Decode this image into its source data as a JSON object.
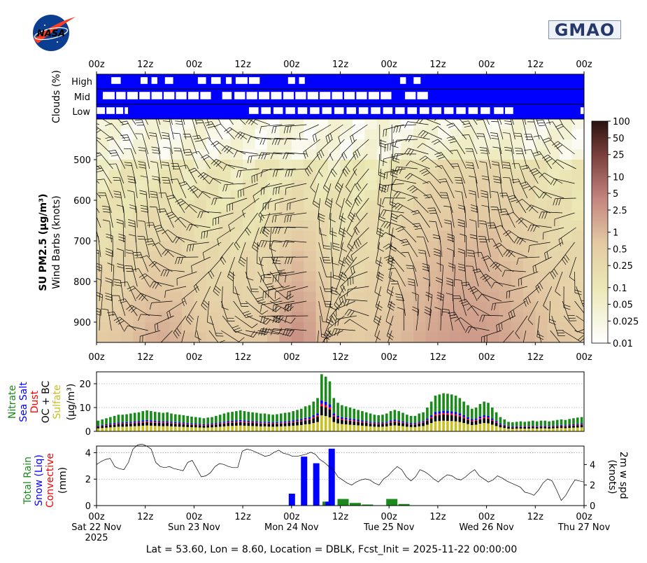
{
  "logos": {
    "left": "NASA",
    "right": "GMAO"
  },
  "time_ticks": [
    "00z",
    "12z",
    "00z",
    "12z",
    "00z",
    "12z",
    "00z",
    "12z",
    "00z",
    "12z",
    "00z"
  ],
  "date_ticks": [
    {
      "at": 0,
      "lines": [
        "Sat 22 Nov",
        "2025"
      ]
    },
    {
      "at": 2,
      "lines": [
        "Sun 23 Nov"
      ]
    },
    {
      "at": 4,
      "lines": [
        "Mon 24 Nov"
      ]
    },
    {
      "at": 6,
      "lines": [
        "Tue 25 Nov"
      ]
    },
    {
      "at": 8,
      "lines": [
        "Wed 26 Nov"
      ]
    },
    {
      "at": 10,
      "lines": [
        "Thu 27 Nov"
      ]
    }
  ],
  "footer": "Lat = 53.60, Lon = 8.60, Location = DBLK, Fcst_Init = 2025-11-22 00:00:00",
  "colors": {
    "cloud": "#0000ff",
    "nitrate": "#1a8a1a",
    "seasalt": "#0000ff",
    "dust": "#ff0000",
    "ocbc": "#000000",
    "sulfate": "#c8c020",
    "rain": "#1a8a1a",
    "snow": "#0000ff"
  },
  "chart_data": [
    {
      "type": "heatmap",
      "name": "clouds",
      "ylabel": "Clouds (%)",
      "rows": [
        "High",
        "Mid",
        "Low"
      ],
      "x": "hours 0-120, 3-hourly",
      "levels": {
        "High": [
          0,
          0,
          0,
          0,
          1,
          0,
          1,
          0,
          1,
          1,
          0,
          0,
          1,
          1,
          0,
          0,
          1,
          0,
          0,
          0,
          0,
          0,
          0,
          0,
          0,
          0,
          0,
          0,
          0,
          0,
          0,
          0,
          0,
          0,
          0,
          0,
          0,
          0,
          0,
          0
        ],
        "Mid": [
          0,
          1,
          0,
          0,
          1,
          0,
          1,
          0,
          1,
          1,
          0,
          1,
          0,
          1,
          1,
          0,
          1,
          1,
          0,
          0,
          0,
          0,
          0,
          0,
          0,
          0,
          0,
          0,
          1,
          0,
          0,
          0,
          0,
          0,
          0,
          0,
          0,
          0,
          0,
          0
        ],
        "Low": [
          1,
          1,
          0,
          1,
          0,
          0,
          0,
          0,
          0,
          0,
          0,
          0,
          0,
          0,
          0,
          0,
          0,
          0,
          0,
          0,
          0,
          0,
          0,
          0,
          0,
          0,
          0,
          0,
          0,
          0,
          0,
          0,
          0,
          0,
          0,
          0,
          0,
          0,
          0,
          0
        ]
      }
    },
    {
      "type": "heatmap",
      "name": "pm25_profile",
      "ylabel": "SU PM2.5 (μg/m³)",
      "ylabel2": "Wind Barbs (knots)",
      "y_ticks": [
        500,
        600,
        700,
        800,
        900
      ],
      "y_range_hpa": [
        950,
        400
      ],
      "colorbar_ticks": [
        "100",
        "50",
        "25",
        "10",
        "5",
        "2.5",
        "1",
        "0.5",
        "0.25",
        "0.1",
        "0.05",
        "0.025",
        "0.01"
      ]
    },
    {
      "type": "bar",
      "name": "aerosol_stack",
      "ylabel_species": [
        "Nitrate",
        "Sea Salt",
        "Dust",
        "OC + BC",
        "Sulfate"
      ],
      "ylabel_unit": "(μg/m³)",
      "y_ticks": [
        0,
        10,
        20
      ],
      "ylim": [
        0,
        25
      ],
      "totals": [
        4.5,
        5,
        5.5,
        6,
        6.5,
        7,
        7,
        7.2,
        7.5,
        7.8,
        8,
        8.5,
        8.8,
        8.5,
        8.2,
        8,
        7.8,
        8,
        7.5,
        7.2,
        7,
        6.8,
        6.5,
        6.2,
        6,
        5.8,
        5.5,
        5.8,
        6,
        6.5,
        7,
        7.5,
        8,
        8.2,
        8.5,
        8.8,
        8.5,
        8.2,
        8,
        7.8,
        7.5,
        7.5,
        7.2,
        7,
        7.2,
        7.5,
        7.8,
        8,
        8.5,
        9,
        9.5,
        10.5,
        11,
        12.5,
        14,
        24,
        23,
        21,
        14,
        12,
        11,
        10.5,
        10,
        9.5,
        9,
        8.5,
        8,
        7.5,
        7,
        6.8,
        7,
        7.5,
        8.5,
        9,
        8.5,
        7.8,
        7,
        6.5,
        6.5,
        7.5,
        8,
        10,
        12.5,
        15,
        15.5,
        16,
        15.8,
        15.5,
        15,
        14,
        12.5,
        11,
        9.5,
        10,
        11.5,
        12.5,
        12,
        10,
        8,
        6,
        5,
        4,
        3.8,
        4,
        4.2,
        4,
        4.2,
        4.5,
        4.2,
        4.5,
        4.5,
        4.2,
        4.5,
        4.8,
        5,
        4.8,
        5.2,
        5.5,
        5.8,
        6
      ],
      "sulfate_frac": 0.28,
      "ocbc_frac": 0.16,
      "dust_frac": 0.04,
      "seasalt_frac": 0.06
    },
    {
      "type": "bar",
      "name": "precip",
      "ylabel_species": [
        "Total Rain",
        "Snow (Liq)",
        "Convective"
      ],
      "ylabel_unit": "(mm)",
      "y_ticks": [
        0,
        2,
        4
      ],
      "ylim": [
        0,
        4.5
      ],
      "bars": [
        {
          "hour": 48,
          "snow": 0.9,
          "rain": 0
        },
        {
          "hour": 51,
          "snow": 3.7,
          "rain": 0
        },
        {
          "hour": 54,
          "snow": 3.2,
          "rain": 0
        },
        {
          "hour": 57,
          "snow": 0.3,
          "rain": 0.3
        },
        {
          "hour": 57.8,
          "snow": 4.3,
          "rain": 0
        },
        {
          "hour": 60,
          "snow": 0,
          "rain": 0.5
        },
        {
          "hour": 63,
          "snow": 0,
          "rain": 0.2
        },
        {
          "hour": 66,
          "snow": 0,
          "rain": 0.08
        },
        {
          "hour": 72,
          "snow": 0,
          "rain": 0.5
        },
        {
          "hour": 75,
          "snow": 0,
          "rain": 0.12
        }
      ],
      "wind_label": "2m w spd\n(knots)",
      "wind_ticks": [
        0,
        2,
        4
      ],
      "wind_ylim": [
        0,
        5.8
      ],
      "wind": [
        4,
        4.3,
        4.5,
        4.6,
        3.8,
        3.6,
        3.5,
        4.2,
        5.5,
        5.9,
        6,
        5.8,
        5.5,
        4.2,
        3.8,
        3.7,
        3.8,
        3.6,
        3.5,
        3.4,
        4.2,
        4.4,
        3.6,
        2.8,
        2.9,
        3.2,
        3.8,
        4.1,
        4,
        3.8,
        3.7,
        3.7,
        5.3,
        5.5,
        5.4,
        5.2,
        5,
        4.8,
        4.9,
        5.2,
        5.4,
        5.1,
        5,
        4.8,
        4.8,
        4.9,
        5,
        5.2,
        5,
        4.5,
        4.2,
        3.8,
        3.5,
        2.8,
        2.5,
        2.2,
        2,
        2.3,
        2.5,
        2.6,
        2.5,
        2.2,
        2,
        2.6,
        2.9,
        3.4,
        3.8,
        3.5,
        2.8,
        2.4,
        2.8,
        3.5,
        3.3,
        3,
        2.6,
        2.3,
        2.7,
        3,
        2.9,
        2.6,
        2.5,
        2.8,
        3.2,
        3.5,
        2.9,
        2.6,
        2.3,
        2.5,
        2.9,
        2.7,
        2.4,
        2.2,
        2,
        1.8,
        1.3,
        1.2,
        1,
        1.5,
        2.2,
        2.6,
        2.4,
        1.5,
        0.5,
        1,
        1.8,
        2.5,
        2.4,
        2.3
      ]
    }
  ]
}
